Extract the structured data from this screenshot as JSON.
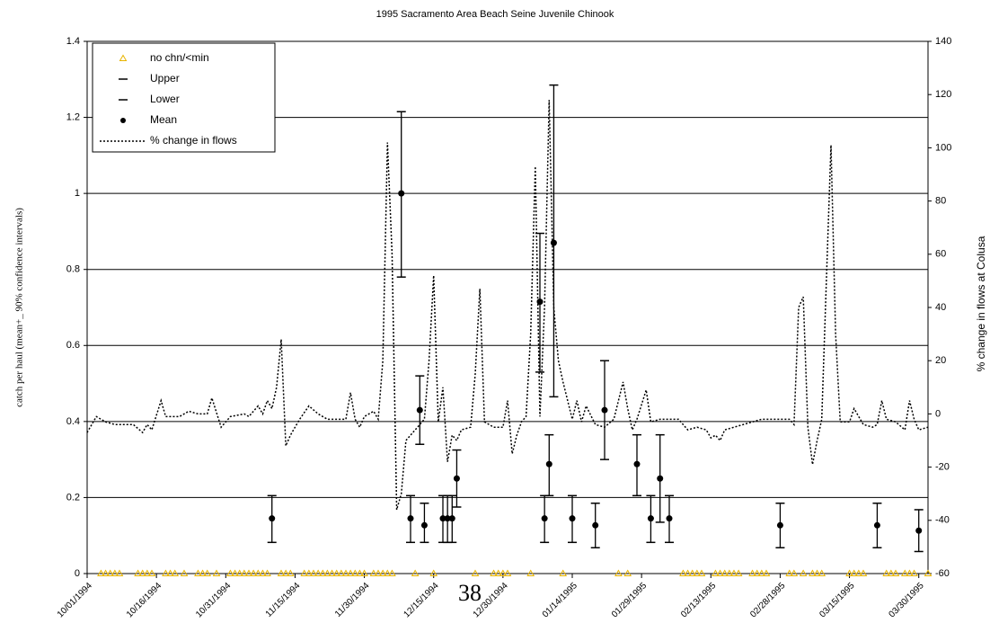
{
  "chart_data": {
    "type": "scatter",
    "title": "1995 Sacramento Area Beach Seine Juvenile Chinook",
    "y_label": "catch per haul (mean+_ 90% confidence intervals)",
    "y2_label": "% change in flows at Colusa",
    "page_number": "38",
    "legend": "upper left",
    "grid": true,
    "xlim": [
      "10/01/1994",
      "04/01/1995"
    ],
    "xticks": [
      "10/01/1994",
      "10/16/1994",
      "10/31/1994",
      "11/15/1994",
      "11/30/1994",
      "12/15/1994",
      "12/30/1994",
      "01/14/1995",
      "01/29/1995",
      "02/13/1995",
      "02/28/1995",
      "03/15/1995",
      "03/30/1995"
    ],
    "ylim": [
      0,
      1.4
    ],
    "yticks": [
      0,
      0.2,
      0.4,
      0.6,
      0.8,
      1,
      1.2,
      1.4
    ],
    "y2lim": [
      -60,
      140
    ],
    "y2ticks": [
      -60,
      -40,
      -20,
      0,
      20,
      40,
      60,
      80,
      100,
      120,
      140
    ],
    "series": [
      {
        "name": "no chn/<min",
        "color": "#e8b400",
        "marker": "triangle",
        "x": [
          "10/04/1994",
          "10/05/1994",
          "10/06/1994",
          "10/07/1994",
          "10/08/1994",
          "10/12/1994",
          "10/13/1994",
          "10/14/1994",
          "10/15/1994",
          "10/18/1994",
          "10/19/1994",
          "10/20/1994",
          "10/22/1994",
          "10/25/1994",
          "10/26/1994",
          "10/27/1994",
          "10/29/1994",
          "11/01/1994",
          "11/02/1994",
          "11/03/1994",
          "11/04/1994",
          "11/05/1994",
          "11/06/1994",
          "11/07/1994",
          "11/08/1994",
          "11/09/1994",
          "11/12/1994",
          "11/13/1994",
          "11/14/1994",
          "11/17/1994",
          "11/18/1994",
          "11/19/1994",
          "11/20/1994",
          "11/21/1994",
          "11/22/1994",
          "11/23/1994",
          "11/24/1994",
          "11/25/1994",
          "11/26/1994",
          "11/27/1994",
          "11/28/1994",
          "11/29/1994",
          "11/30/1994",
          "12/02/1994",
          "12/03/1994",
          "12/04/1994",
          "12/05/1994",
          "12/06/1994",
          "12/11/1994",
          "12/15/1994",
          "12/24/1994",
          "12/28/1994",
          "12/29/1994",
          "12/30/1994",
          "12/31/1994",
          "01/05/1995",
          "01/12/1995",
          "01/24/1995",
          "01/26/1995",
          "02/07/1995",
          "02/08/1995",
          "02/09/1995",
          "02/10/1995",
          "02/11/1995",
          "02/14/1995",
          "02/15/1995",
          "02/16/1995",
          "02/17/1995",
          "02/18/1995",
          "02/19/1995",
          "02/22/1995",
          "02/23/1995",
          "02/24/1995",
          "02/25/1995",
          "03/02/1995",
          "03/03/1995",
          "03/05/1995",
          "03/07/1995",
          "03/08/1995",
          "03/09/1995",
          "03/15/1995",
          "03/16/1995",
          "03/17/1995",
          "03/18/1995",
          "03/23/1995",
          "03/24/1995",
          "03/25/1995",
          "03/27/1995",
          "03/28/1995",
          "03/29/1995",
          "04/01/1995"
        ],
        "values": [
          0,
          0,
          0,
          0,
          0,
          0,
          0,
          0,
          0,
          0,
          0,
          0,
          0,
          0,
          0,
          0,
          0,
          0,
          0,
          0,
          0,
          0,
          0,
          0,
          0,
          0,
          0,
          0,
          0,
          0,
          0,
          0,
          0,
          0,
          0,
          0,
          0,
          0,
          0,
          0,
          0,
          0,
          0,
          0,
          0,
          0,
          0,
          0,
          0,
          0,
          0,
          0,
          0,
          0,
          0,
          0,
          0,
          0,
          0,
          0,
          0,
          0,
          0,
          0,
          0,
          0,
          0,
          0,
          0,
          0,
          0,
          0,
          0,
          0,
          0,
          0,
          0,
          0,
          0,
          0,
          0,
          0,
          0,
          0,
          0,
          0,
          0,
          0,
          0,
          0,
          0
        ]
      },
      {
        "name": "Upper",
        "color": "#000000",
        "marker": "dash",
        "x": [
          "11/10/1994",
          "12/08/1994",
          "12/10/1994",
          "12/12/1994",
          "12/13/1994",
          "12/17/1994",
          "12/18/1994",
          "12/19/1994",
          "12/20/1994",
          "01/07/1995",
          "01/08/1995",
          "01/09/1995",
          "01/10/1995",
          "01/14/1995",
          "01/19/1995",
          "01/21/1995",
          "01/28/1995",
          "01/31/1995",
          "02/02/1995",
          "02/04/1995",
          "02/28/1995",
          "03/21/1995",
          "03/30/1995"
        ],
        "values": [
          0.205,
          1.215,
          0.205,
          0.52,
          0.185,
          0.205,
          0.205,
          0.205,
          0.325,
          0.895,
          0.205,
          0.365,
          1.285,
          0.205,
          0.185,
          0.56,
          0.365,
          0.205,
          0.365,
          0.205,
          0.185,
          0.185,
          0.168
        ]
      },
      {
        "name": "Lower",
        "color": "#000000",
        "marker": "dash",
        "x": [
          "11/10/1994",
          "12/08/1994",
          "12/10/1994",
          "12/12/1994",
          "12/13/1994",
          "12/17/1994",
          "12/18/1994",
          "12/19/1994",
          "12/20/1994",
          "01/07/1995",
          "01/08/1995",
          "01/09/1995",
          "01/10/1995",
          "01/14/1995",
          "01/19/1995",
          "01/21/1995",
          "01/28/1995",
          "01/31/1995",
          "02/02/1995",
          "02/04/1995",
          "02/28/1995",
          "03/21/1995",
          "03/30/1995"
        ],
        "values": [
          0.082,
          0.78,
          0.082,
          0.34,
          0.082,
          0.082,
          0.082,
          0.082,
          0.175,
          0.53,
          0.082,
          0.205,
          0.465,
          0.082,
          0.068,
          0.3,
          0.205,
          0.082,
          0.135,
          0.082,
          0.068,
          0.068,
          0.058
        ]
      },
      {
        "name": "Mean",
        "color": "#000000",
        "marker": "circle",
        "x": [
          "11/10/1994",
          "12/08/1994",
          "12/10/1994",
          "12/12/1994",
          "12/13/1994",
          "12/17/1994",
          "12/18/1994",
          "12/19/1994",
          "12/20/1994",
          "01/07/1995",
          "01/08/1995",
          "01/09/1995",
          "01/10/1995",
          "01/14/1995",
          "01/19/1995",
          "01/21/1995",
          "01/28/1995",
          "01/31/1995",
          "02/02/1995",
          "02/04/1995",
          "02/28/1995",
          "03/21/1995",
          "03/30/1995"
        ],
        "values": [
          0.145,
          1.0,
          0.145,
          0.43,
          0.127,
          0.145,
          0.145,
          0.145,
          0.25,
          0.715,
          0.145,
          0.288,
          0.87,
          0.145,
          0.127,
          0.43,
          0.288,
          0.145,
          0.25,
          0.145,
          0.127,
          0.127,
          0.113
        ]
      },
      {
        "name": "% change in flows",
        "color": "#000000",
        "marker": "dotted-line",
        "axis": "y2",
        "x": [
          "10/01/1994",
          "10/03/1994",
          "10/05/1994",
          "10/07/1994",
          "10/09/1994",
          "10/11/1994",
          "10/13/1994",
          "10/14/1994",
          "10/15/1994",
          "10/17/1994",
          "10/18/1994",
          "10/21/1994",
          "10/23/1994",
          "10/25/1994",
          "10/27/1994",
          "10/28/1994",
          "10/30/1994",
          "11/01/1994",
          "11/04/1994",
          "11/05/1994",
          "11/07/1994",
          "11/08/1994",
          "11/09/1994",
          "11/10/1994",
          "11/11/1994",
          "11/12/1994",
          "11/13/1994",
          "11/14/1994",
          "11/16/1994",
          "11/18/1994",
          "11/20/1994",
          "11/22/1994",
          "11/24/1994",
          "11/26/1994",
          "11/27/1994",
          "11/28/1994",
          "11/29/1994",
          "11/30/1994",
          "12/02/1994",
          "12/03/1994",
          "12/04/1994",
          "12/05/1994",
          "12/06/1994",
          "12/07/1994",
          "12/08/1994",
          "12/09/1994",
          "12/10/1994",
          "12/12/1994",
          "12/13/1994",
          "12/14/1994",
          "12/15/1994",
          "12/16/1994",
          "12/17/1994",
          "12/18/1994",
          "12/19/1994",
          "12/20/1994",
          "12/21/1994",
          "12/23/1994",
          "12/24/1994",
          "12/25/1994",
          "12/26/1994",
          "12/28/1994",
          "12/30/1994",
          "12/31/1994",
          "01/01/1995",
          "01/02/1995",
          "01/03/1995",
          "01/04/1995",
          "01/05/1995",
          "01/06/1995",
          "01/07/1995",
          "01/08/1995",
          "01/09/1995",
          "01/10/1995",
          "01/11/1995",
          "01/12/1995",
          "01/13/1995",
          "01/14/1995",
          "01/15/1995",
          "01/16/1995",
          "01/17/1995",
          "01/19/1995",
          "01/21/1995",
          "01/23/1995",
          "01/25/1995",
          "01/26/1995",
          "01/27/1995",
          "01/28/1995",
          "01/30/1995",
          "01/31/1995",
          "02/02/1995",
          "02/04/1995",
          "02/06/1995",
          "02/08/1995",
          "02/10/1995",
          "02/12/1995",
          "02/13/1995",
          "02/14/1995",
          "02/15/1995",
          "02/16/1995",
          "02/18/1995",
          "02/20/1995",
          "02/22/1995",
          "02/24/1995",
          "02/26/1995",
          "02/28/1995",
          "03/02/1995",
          "03/03/1995",
          "03/04/1995",
          "03/05/1995",
          "03/06/1995",
          "03/07/1995",
          "03/08/1995",
          "03/09/1995",
          "03/10/1995",
          "03/11/1995",
          "03/12/1995",
          "03/13/1995",
          "03/15/1995",
          "03/16/1995",
          "03/18/1995",
          "03/20/1995",
          "03/21/1995",
          "03/22/1995",
          "03/23/1995",
          "03/25/1995",
          "03/27/1995",
          "03/28/1995",
          "03/29/1995",
          "03/30/1995",
          "04/01/1995"
        ],
        "values": [
          -7,
          -1,
          -3,
          -4,
          -4,
          -4,
          -7,
          -4,
          -6,
          5,
          -1,
          -1,
          1,
          0,
          0,
          6,
          -5,
          -1,
          0,
          -1,
          3,
          0,
          5,
          2,
          10,
          28,
          -12,
          -8,
          -2,
          3,
          0,
          -2,
          -2,
          -2,
          8,
          -2,
          -5,
          -1,
          1,
          -2,
          20,
          102,
          60,
          -36,
          -30,
          -10,
          -8,
          -4,
          -2,
          20,
          52,
          -3,
          10,
          -18,
          -8,
          -10,
          -6,
          -5,
          15,
          47,
          -3,
          -5,
          -5,
          5,
          -15,
          -8,
          -3,
          -1,
          30,
          93,
          -1,
          40,
          118,
          40,
          20,
          12,
          5,
          -2,
          5,
          -3,
          3,
          -4,
          -5,
          -2,
          12,
          2,
          -6,
          -2,
          9,
          -3,
          -2,
          -2,
          -2,
          -6,
          -5,
          -6,
          -9,
          -8,
          -10,
          -6,
          -5,
          -4,
          -3,
          -2,
          -2,
          -2,
          -2,
          -4,
          40,
          44,
          -5,
          -19,
          -10,
          -2,
          50,
          101,
          30,
          -3,
          -3,
          2,
          -4,
          -5,
          -4,
          5,
          -2,
          -3,
          -6,
          5,
          -2,
          -6,
          -5
        ]
      }
    ]
  }
}
